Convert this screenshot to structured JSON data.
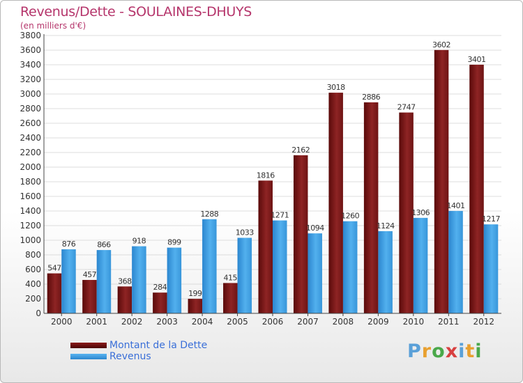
{
  "chart_data": {
    "type": "bar",
    "title": "Revenus/Dette - SOULAINES-DHUYS",
    "subtitle": "(en milliers d'€)",
    "categories": [
      "2000",
      "2001",
      "2002",
      "2003",
      "2004",
      "2005",
      "2006",
      "2007",
      "2008",
      "2009",
      "2010",
      "2011",
      "2012"
    ],
    "series": [
      {
        "name": "Montant de la Dette",
        "color": "#8b1a1a",
        "values": [
          547,
          457,
          368,
          284,
          199,
          415,
          1816,
          2162,
          3018,
          2886,
          2747,
          3602,
          3401
        ]
      },
      {
        "name": "Revenus",
        "color": "#3a9be0",
        "values": [
          876,
          866,
          918,
          899,
          1288,
          1033,
          1271,
          1094,
          1260,
          1124,
          1306,
          1401,
          1217
        ]
      }
    ],
    "ylim": [
      0,
      3800
    ],
    "ytick_step": 200,
    "grid": true,
    "legend_position": "bottom-left"
  },
  "legend": {
    "dette_label": "Montant de la Dette",
    "revenus_label": "Revenus"
  },
  "logo": {
    "letters": [
      "P",
      "r",
      "o",
      "x",
      "i",
      "t",
      "i"
    ],
    "colors": [
      "#5aa0d8",
      "#e8a030",
      "#4aa84a",
      "#d84040",
      "#5aa0d8",
      "#e8a030",
      "#4aa84a"
    ]
  }
}
